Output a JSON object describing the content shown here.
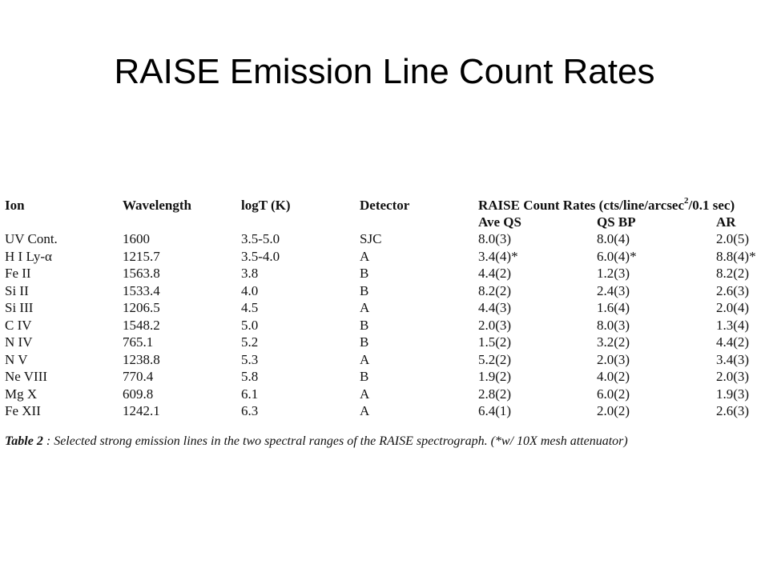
{
  "slide": {
    "title": "RAISE Emission Line Count Rates"
  },
  "table": {
    "headers": {
      "ion": "Ion",
      "wavelength": "Wavelength",
      "logt": "logT (K)",
      "detector": "Detector",
      "rates_prefix": "RAISE Count Rates  (cts/line/arcsec",
      "rates_sup": "2",
      "rates_suffix": "/0.1 sec)"
    },
    "subheaders": {
      "ave_qs": "Ave QS",
      "qs_bp": "QS BP",
      "ar": "AR"
    },
    "rows": [
      [
        "UV Cont.",
        "1600",
        "3.5-5.0",
        "SJC",
        "8.0(3)",
        "8.0(4)",
        "2.0(5)"
      ],
      [
        "H I Ly-α",
        "1215.7",
        "3.5-4.0",
        "A",
        "3.4(4)*",
        "6.0(4)*",
        "8.8(4)*"
      ],
      [
        "Fe II",
        "1563.8",
        "3.8",
        "B",
        "4.4(2)",
        "1.2(3)",
        "8.2(2)"
      ],
      [
        "Si II",
        "1533.4",
        "4.0",
        "B",
        "8.2(2)",
        "2.4(3)",
        "2.6(3)"
      ],
      [
        "Si III",
        "1206.5",
        "4.5",
        "A",
        "4.4(3)",
        "1.6(4)",
        "2.0(4)"
      ],
      [
        "C IV",
        "1548.2",
        "5.0",
        "B",
        "2.0(3)",
        "8.0(3)",
        "1.3(4)"
      ],
      [
        "N IV",
        "765.1",
        "5.2",
        "B",
        "1.5(2)",
        "3.2(2)",
        "4.4(2)"
      ],
      [
        "N V",
        "1238.8",
        "5.3",
        "A",
        "5.2(2)",
        "2.0(3)",
        "3.4(3)"
      ],
      [
        "Ne VIII",
        "770.4",
        "5.8",
        "B",
        "1.9(2)",
        "4.0(2)",
        "2.0(3)"
      ],
      [
        "Mg X",
        "609.8",
        "6.1",
        "A",
        "2.8(2)",
        "6.0(2)",
        "1.9(3)"
      ],
      [
        "Fe XII",
        "1242.1",
        "6.3",
        "A",
        "6.4(1)",
        "2.0(2)",
        "2.6(3)"
      ]
    ],
    "caption_label": "Table 2",
    "caption_text": " : Selected strong emission lines in the two spectral ranges of the RAISE spectrograph. (*w/ 10X mesh attenuator)"
  }
}
